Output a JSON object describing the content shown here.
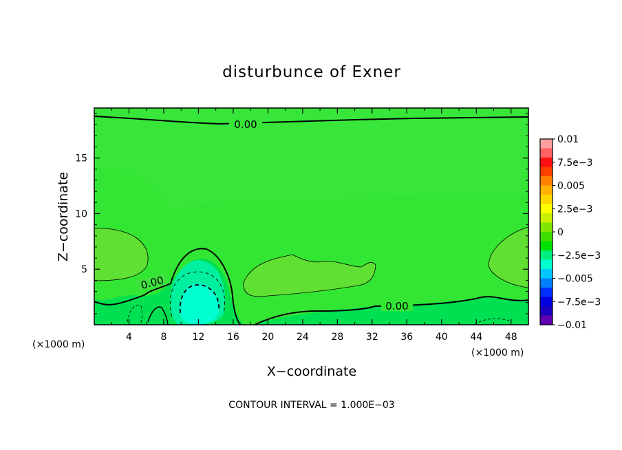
{
  "chart_data": {
    "type": "contour",
    "title": "disturbunce of Exner",
    "xlabel": "X−coordinate",
    "ylabel": "Z−coordinate",
    "x_unit": "(×1000 m)",
    "y_unit": "(×1000 m)",
    "xlim": [
      0,
      50
    ],
    "ylim": [
      0,
      19.5
    ],
    "x_ticks": [
      4,
      8,
      12,
      16,
      20,
      24,
      28,
      32,
      36,
      40,
      44,
      48
    ],
    "y_ticks": [
      5,
      10,
      15
    ],
    "x_tick_labels": [
      "4",
      "8",
      "12",
      "16",
      "20",
      "24",
      "28",
      "32",
      "36",
      "40",
      "44",
      "48"
    ],
    "y_tick_labels": [
      "5",
      "10",
      "15"
    ],
    "contour_interval_text": "CONTOUR INTERVAL = 1.000E−03",
    "contour_labels": [
      "0.00",
      "0.00",
      "0.00"
    ],
    "colorbar": {
      "labels": [
        "0.01",
        "7.5e−3",
        "0.005",
        "2.5e−3",
        "0",
        "−2.5e−3",
        "−0.005",
        "−7.5e−3",
        "−0.01"
      ],
      "colors": [
        "#ffa0a0",
        "#ff6060",
        "#ff1010",
        "#ff4000",
        "#ff8000",
        "#ffb000",
        "#ffd800",
        "#ffff00",
        "#c8f000",
        "#80e800",
        "#40e000",
        "#00e000",
        "#00f080",
        "#00ffd0",
        "#00c8ff",
        "#0080ff",
        "#0030ff",
        "#0000e0",
        "#1a00c0",
        "#6000b0"
      ]
    },
    "regions": [
      {
        "name": "background",
        "level": "0 to 1e-3",
        "color": "#33e633"
      },
      {
        "name": "upper-band",
        "level": "1e-3 to 2e-3",
        "color": "#40e040"
      },
      {
        "name": "left-lobe",
        "level": "2e-3 to 3e-3",
        "color": "#5fe032"
      },
      {
        "name": "middle-lobe",
        "level": "2e-3 to 3e-3",
        "color": "#5fe032"
      },
      {
        "name": "right-lobe",
        "level": "2e-3 to 3e-3",
        "color": "#5fe032"
      },
      {
        "name": "lower-layer",
        "level": "-1e-3 to 0",
        "color": "#00e050"
      },
      {
        "name": "cold-core",
        "level": "-3e-3 to -1e-3",
        "color": "#00f0a0"
      },
      {
        "name": "cold-core-center",
        "level": "< -3e-3",
        "color": "#00ffd0"
      }
    ]
  }
}
